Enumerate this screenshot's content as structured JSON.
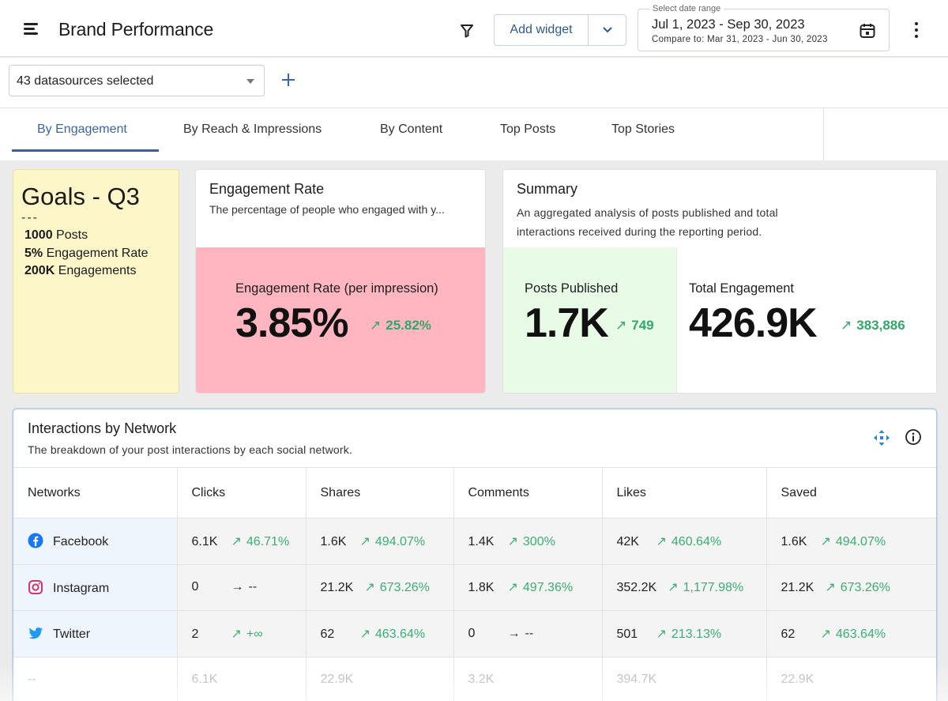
{
  "header": {
    "title": "Brand Performance",
    "add_widget_label": "Add widget",
    "date_range": {
      "label": "Select date range",
      "value": "Jul 1, 2023 - Sep 30, 2023",
      "compare": "Compare to: Mar 31, 2023 - Jun 30, 2023"
    }
  },
  "subbar": {
    "datasources_label": "43 datasources selected"
  },
  "tabs": [
    {
      "label": "By Engagement",
      "active": true
    },
    {
      "label": "By Reach & Impressions",
      "active": false
    },
    {
      "label": "By Content",
      "active": false
    },
    {
      "label": "Top Posts",
      "active": false
    },
    {
      "label": "Top Stories",
      "active": false
    }
  ],
  "goals": {
    "title": "Goals - Q3",
    "separator": "---",
    "items": [
      {
        "value": "1000",
        "text": "Posts"
      },
      {
        "value": "5%",
        "text": "Engagement Rate"
      },
      {
        "value": "200K",
        "text": "Engagements"
      }
    ]
  },
  "engagement_rate": {
    "title": "Engagement Rate",
    "description": "The percentage of people who engaged with y...",
    "metric_label": "Engagement Rate (per impression)",
    "value": "3.85%",
    "delta": "25.82%",
    "panel_color": "#ffb6c1"
  },
  "summary": {
    "title": "Summary",
    "description": "An aggregated analysis of posts published and total interactions received during the reporting period.",
    "posts": {
      "label": "Posts Published",
      "value": "1.7K",
      "delta": "749",
      "panel_color": "#e8fbe6"
    },
    "engagement": {
      "label": "Total Engagement",
      "value": "426.9K",
      "delta": "383,886"
    }
  },
  "interactions": {
    "title": "Interactions by Network",
    "description": "The breakdown of your post interactions by each social network.",
    "columns": [
      "Networks",
      "Clicks",
      "Shares",
      "Comments",
      "Likes",
      "Saved"
    ],
    "rows": [
      {
        "network": "Facebook",
        "icon": "facebook-icon",
        "cells": [
          {
            "v": "6.1K",
            "d": "46.71%",
            "dir": "up"
          },
          {
            "v": "1.6K",
            "d": "494.07%",
            "dir": "up"
          },
          {
            "v": "1.4K",
            "d": "300%",
            "dir": "up"
          },
          {
            "v": "42K",
            "d": "460.64%",
            "dir": "up"
          },
          {
            "v": "1.6K",
            "d": "494.07%",
            "dir": "up"
          }
        ]
      },
      {
        "network": "Instagram",
        "icon": "instagram-icon",
        "cells": [
          {
            "v": "0",
            "d": "--",
            "dir": "flat"
          },
          {
            "v": "21.2K",
            "d": "673.26%",
            "dir": "up"
          },
          {
            "v": "1.8K",
            "d": "497.36%",
            "dir": "up"
          },
          {
            "v": "352.2K",
            "d": "1,177.98%",
            "dir": "up"
          },
          {
            "v": "21.2K",
            "d": "673.26%",
            "dir": "up"
          }
        ]
      },
      {
        "network": "Twitter",
        "icon": "twitter-icon",
        "cells": [
          {
            "v": "2",
            "d": "+∞",
            "dir": "up"
          },
          {
            "v": "62",
            "d": "463.64%",
            "dir": "up"
          },
          {
            "v": "0",
            "d": "--",
            "dir": "flat"
          },
          {
            "v": "501",
            "d": "213.13%",
            "dir": "up"
          },
          {
            "v": "62",
            "d": "463.64%",
            "dir": "up"
          }
        ]
      }
    ],
    "total_row": [
      "--",
      "6.1K",
      "22.9K",
      "3.2K",
      "394.7K",
      "22.9K"
    ]
  },
  "colors": {
    "accent": "#3b66a0",
    "positive": "#2fa86a",
    "goals_bg": "#fdf6c9"
  }
}
